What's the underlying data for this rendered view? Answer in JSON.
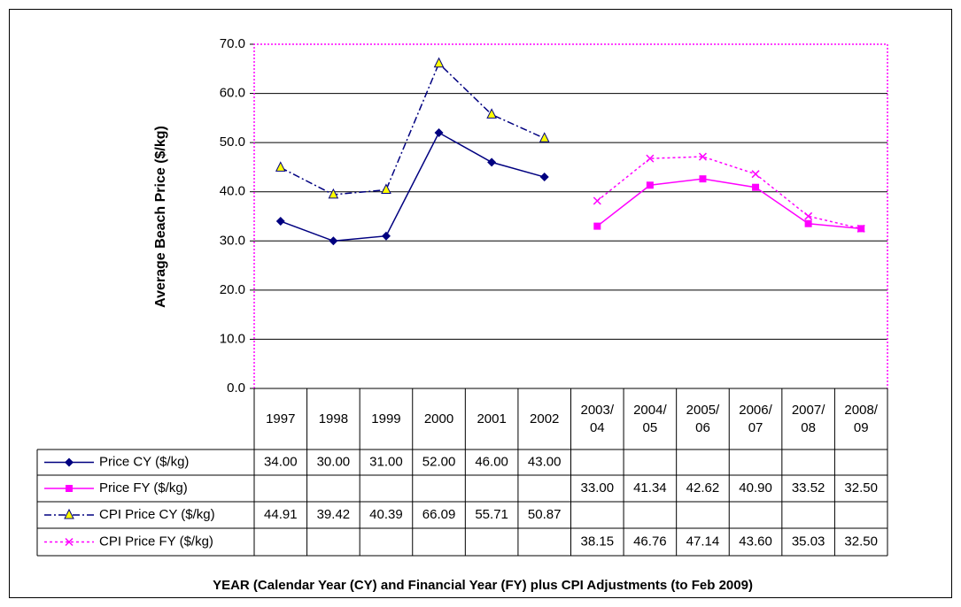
{
  "chart_data": {
    "type": "line",
    "y_label": "Average Beach Price ($/kg)",
    "x_label": "YEAR (Calendar Year (CY) and Financial Year (FY) plus CPI Adjustments (to Feb 2009)",
    "categories": [
      "1997",
      "1998",
      "1999",
      "2000",
      "2001",
      "2002",
      "2003/04",
      "2004/05",
      "2005/06",
      "2006/07",
      "2007/08",
      "2008/09"
    ],
    "ylim": [
      0,
      70
    ],
    "yticks": [
      {
        "value": 0,
        "label": "0.0"
      },
      {
        "value": 10,
        "label": "10.0"
      },
      {
        "value": 20,
        "label": "20.0"
      },
      {
        "value": 30,
        "label": "30.0"
      },
      {
        "value": 40,
        "label": "40.0"
      },
      {
        "value": 50,
        "label": "50.0"
      },
      {
        "value": 60,
        "label": "60.0"
      },
      {
        "value": 70,
        "label": "70.0"
      }
    ],
    "grid": true,
    "series": [
      {
        "name": "Price CY ($/kg)",
        "color": "#000080",
        "marker": "diamond",
        "dash": "solid",
        "values": [
          34,
          30,
          31,
          52,
          46,
          43,
          null,
          null,
          null,
          null,
          null,
          null
        ],
        "value_labels": [
          "34.00",
          "30.00",
          "31.00",
          "52.00",
          "46.00",
          "43.00",
          null,
          null,
          null,
          null,
          null,
          null
        ]
      },
      {
        "name": "Price FY ($/kg)",
        "color": "#ff00ff",
        "marker": "square",
        "dash": "solid",
        "values": [
          null,
          null,
          null,
          null,
          null,
          null,
          33,
          41.34,
          42.62,
          40.9,
          33.52,
          32.5
        ],
        "value_labels": [
          null,
          null,
          null,
          null,
          null,
          null,
          "33.00",
          "41.34",
          "42.62",
          "40.90",
          "33.52",
          "32.50"
        ]
      },
      {
        "name": "CPI Price CY ($/kg)",
        "color": "#000080",
        "marker": "triangle",
        "dash": "dashdot",
        "values": [
          44.91,
          39.42,
          40.39,
          66.09,
          55.71,
          50.87,
          null,
          null,
          null,
          null,
          null,
          null
        ],
        "value_labels": [
          "44.91",
          "39.42",
          "40.39",
          "66.09",
          "55.71",
          "50.87",
          null,
          null,
          null,
          null,
          null,
          null
        ]
      },
      {
        "name": "CPI Price FY ($/kg)",
        "color": "#ff00ff",
        "marker": "x",
        "dash": "dotted",
        "values": [
          null,
          null,
          null,
          null,
          null,
          null,
          38.15,
          46.76,
          47.14,
          43.6,
          35.03,
          32.5
        ],
        "value_labels": [
          null,
          null,
          null,
          null,
          null,
          null,
          "38.15",
          "46.76",
          "47.14",
          "43.60",
          "35.03",
          "32.50"
        ]
      }
    ]
  }
}
